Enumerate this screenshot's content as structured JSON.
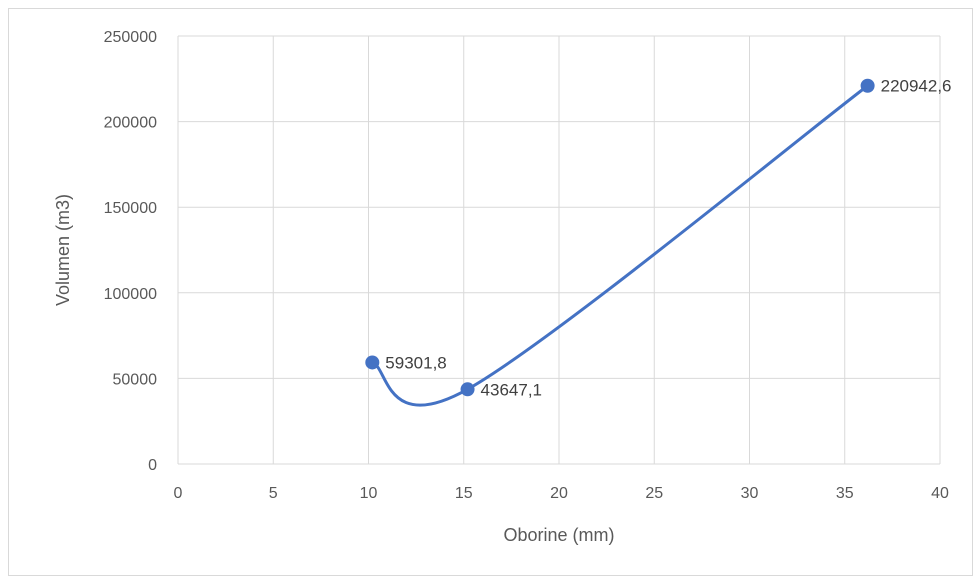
{
  "chart_data": {
    "type": "scatter",
    "title": "",
    "xlabel": "Oborine (mm)",
    "ylabel": "Volumen (m3)",
    "xlim": [
      0,
      40
    ],
    "ylim": [
      0,
      250000
    ],
    "x_ticks": [
      0,
      5,
      10,
      15,
      20,
      25,
      30,
      35,
      40
    ],
    "y_ticks": [
      0,
      50000,
      100000,
      150000,
      200000,
      250000
    ],
    "grid": true,
    "legend": "none",
    "smooth_line": true,
    "series": [
      {
        "color": "#4472c4",
        "points": [
          {
            "x": 10.2,
            "y": 59301.8,
            "label": "59301,8"
          },
          {
            "x": 15.2,
            "y": 43647.1,
            "label": "43647,1"
          },
          {
            "x": 36.2,
            "y": 220942.6,
            "label": "220942,6"
          }
        ]
      }
    ]
  }
}
